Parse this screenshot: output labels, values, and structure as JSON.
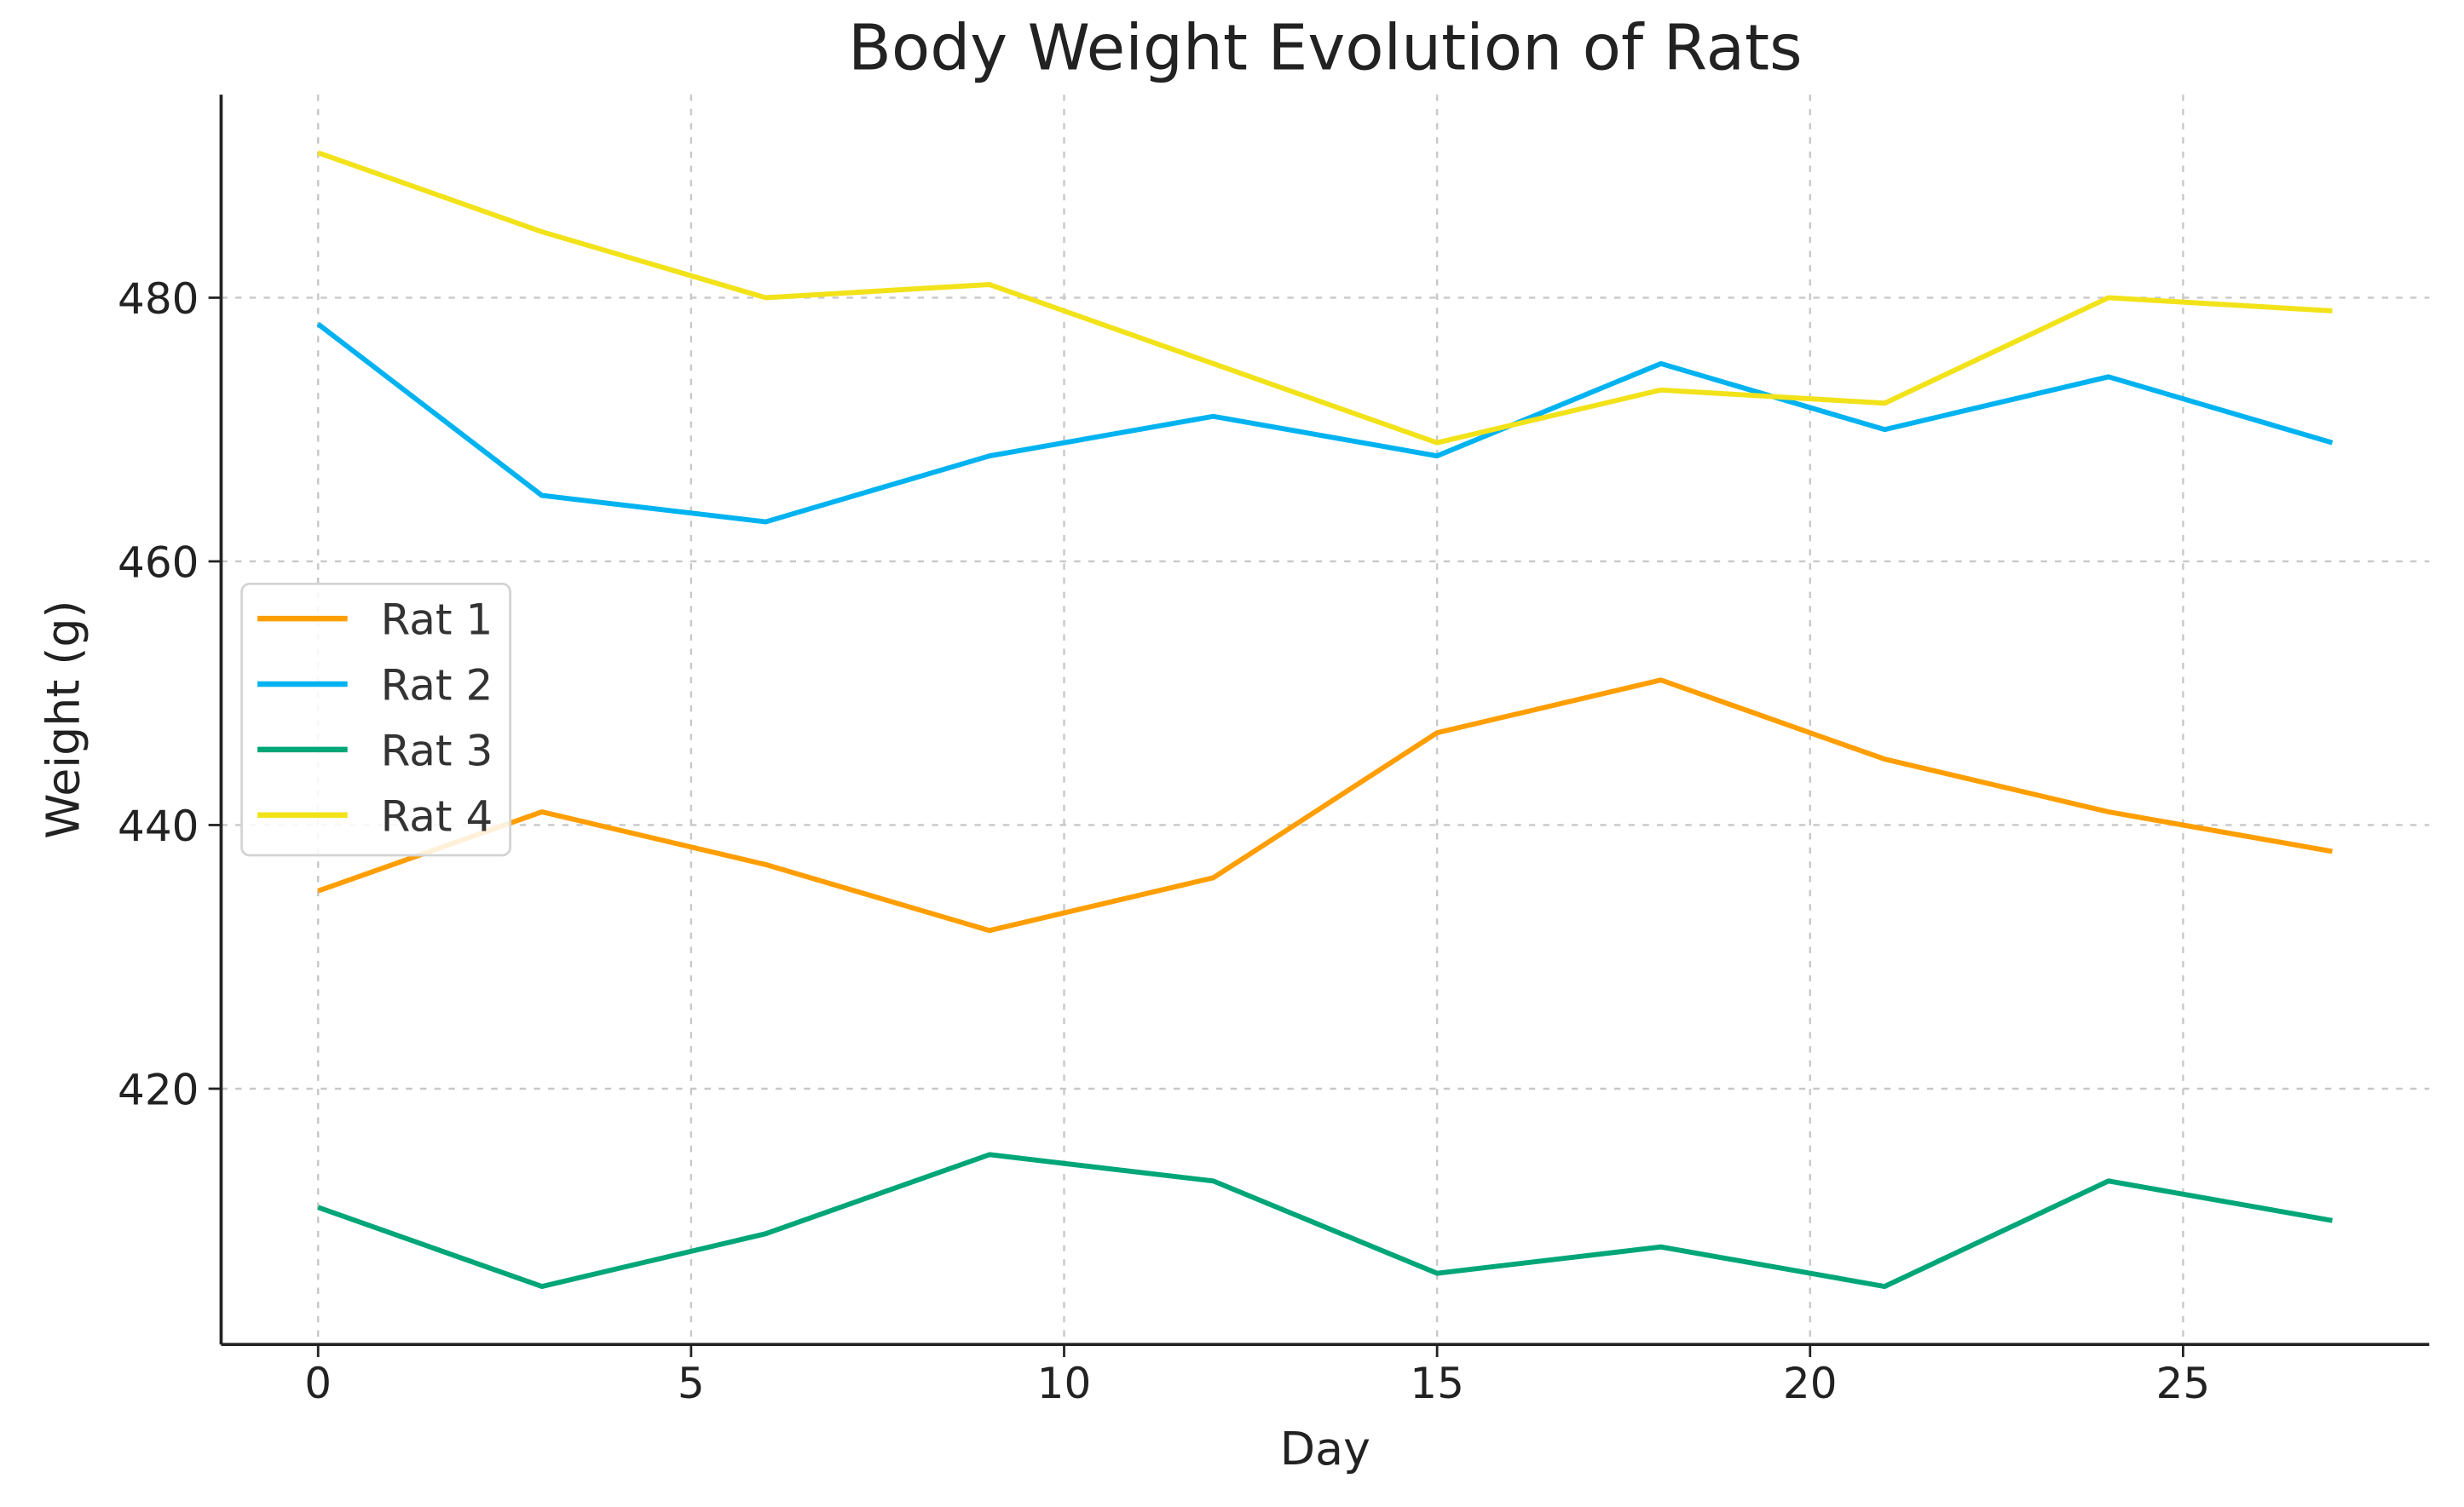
{
  "chart_data": {
    "type": "line",
    "title": "Body Weight Evolution of Rats",
    "xlabel": "Day",
    "ylabel": "Weight (g)",
    "x": [
      0,
      3,
      6,
      9,
      12,
      15,
      18,
      21,
      24,
      27
    ],
    "xlim": [
      -1.3,
      28.3
    ],
    "ylim": [
      400.6,
      495.4
    ],
    "xticks": [
      0,
      5,
      10,
      15,
      20,
      25
    ],
    "yticks": [
      420,
      440,
      460,
      480
    ],
    "grid": true,
    "legend_position": "center-left",
    "series": [
      {
        "name": "Rat 1",
        "color": "#ff9e00",
        "values": [
          435,
          441,
          437,
          432,
          436,
          447,
          451,
          445,
          441,
          438
        ]
      },
      {
        "name": "Rat 2",
        "color": "#00b3f0",
        "values": [
          478,
          465,
          463,
          468,
          471,
          468,
          475,
          470,
          474,
          469
        ]
      },
      {
        "name": "Rat 3",
        "color": "#00a678",
        "values": [
          411,
          405,
          409,
          415,
          413,
          406,
          408,
          405,
          413,
          410
        ]
      },
      {
        "name": "Rat 4",
        "color": "#f2e219",
        "values": [
          491,
          485,
          480,
          481,
          475,
          469,
          473,
          472,
          480,
          479
        ]
      }
    ]
  }
}
